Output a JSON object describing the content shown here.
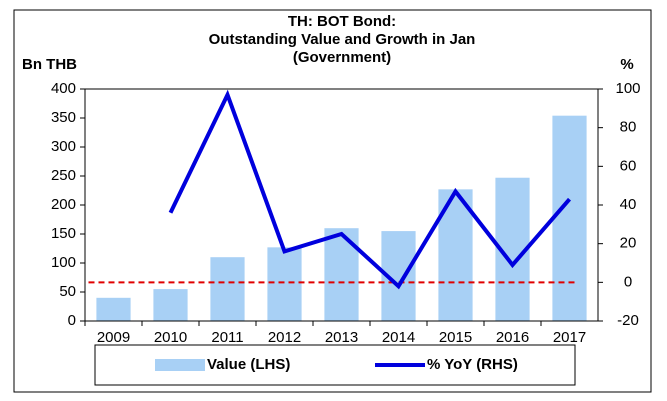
{
  "chart_data": {
    "type": "bar_line",
    "title": [
      "TH: BOT Bond:",
      "Outstanding Value and Growth in Jan",
      "(Government)"
    ],
    "y_label": "Bn THB",
    "y2_label": "%",
    "categories": [
      "2009",
      "2010",
      "2011",
      "2012",
      "2013",
      "2014",
      "2015",
      "2016",
      "2017"
    ],
    "series": [
      {
        "name": "Value (LHS)",
        "type": "bar",
        "color": "#a8d0f5",
        "values": [
          40,
          55,
          110,
          127,
          160,
          155,
          227,
          247,
          354
        ]
      },
      {
        "name": "% YoY (RHS)",
        "type": "line",
        "axis": "y2",
        "color": "#0000dd",
        "values": [
          null,
          36,
          97,
          16,
          25,
          -2,
          47,
          9,
          43
        ]
      }
    ],
    "hline": {
      "value": 0,
      "axis": "y2",
      "color": "#e00000",
      "style": "dashed"
    },
    "ylim": [
      0,
      400
    ],
    "yticks": [
      0,
      50,
      100,
      150,
      200,
      250,
      300,
      350,
      400
    ],
    "y2lim": [
      -20,
      100
    ],
    "y2ticks": [
      -20,
      0,
      20,
      40,
      60,
      80,
      100
    ],
    "legend": "bottom"
  }
}
